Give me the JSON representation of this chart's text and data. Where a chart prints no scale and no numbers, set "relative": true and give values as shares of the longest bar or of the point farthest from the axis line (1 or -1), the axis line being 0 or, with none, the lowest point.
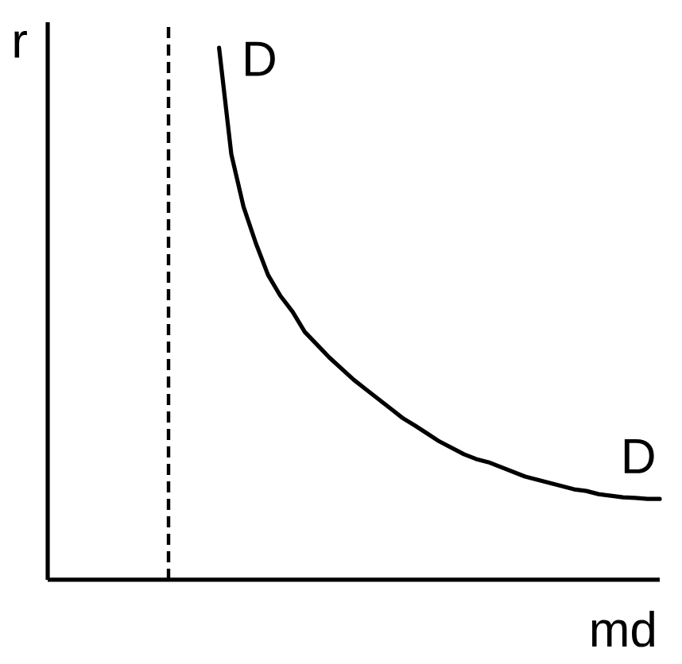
{
  "chart_data": {
    "type": "line",
    "xlabel": "md",
    "ylabel": "r",
    "relative": true,
    "categories": [
      null,
      null,
      null,
      null,
      null,
      null,
      null,
      null,
      null,
      null,
      null,
      null,
      null,
      null,
      null,
      null,
      null,
      null,
      null,
      null,
      null,
      null,
      null,
      null,
      null,
      null,
      null,
      null,
      null,
      null,
      null,
      null,
      null,
      null,
      null,
      null,
      null,
      null,
      null,
      null,
      null,
      null,
      null,
      null,
      null,
      null,
      null,
      null,
      null,
      null,
      null
    ],
    "series": [
      {
        "name": "D",
        "color": "#000000",
        "values": [
          null,
          null,
          null,
          null,
          null,
          null,
          null,
          null,
          null,
          null,
          null,
          null,
          null,
          null,
          1.0,
          0.8,
          0.701,
          0.633,
          0.573,
          0.534,
          0.504,
          0.466,
          0.442,
          0.418,
          0.397,
          0.376,
          0.358,
          0.34,
          0.322,
          0.304,
          0.29,
          0.275,
          0.26,
          0.248,
          0.236,
          0.227,
          0.221,
          0.212,
          0.203,
          0.194,
          0.188,
          0.182,
          0.176,
          0.17,
          0.167,
          0.161,
          0.158,
          0.155,
          0.154,
          0.152,
          0.152
        ]
      }
    ],
    "legend": false,
    "marker": "none",
    "line_style": "solid"
  }
}
